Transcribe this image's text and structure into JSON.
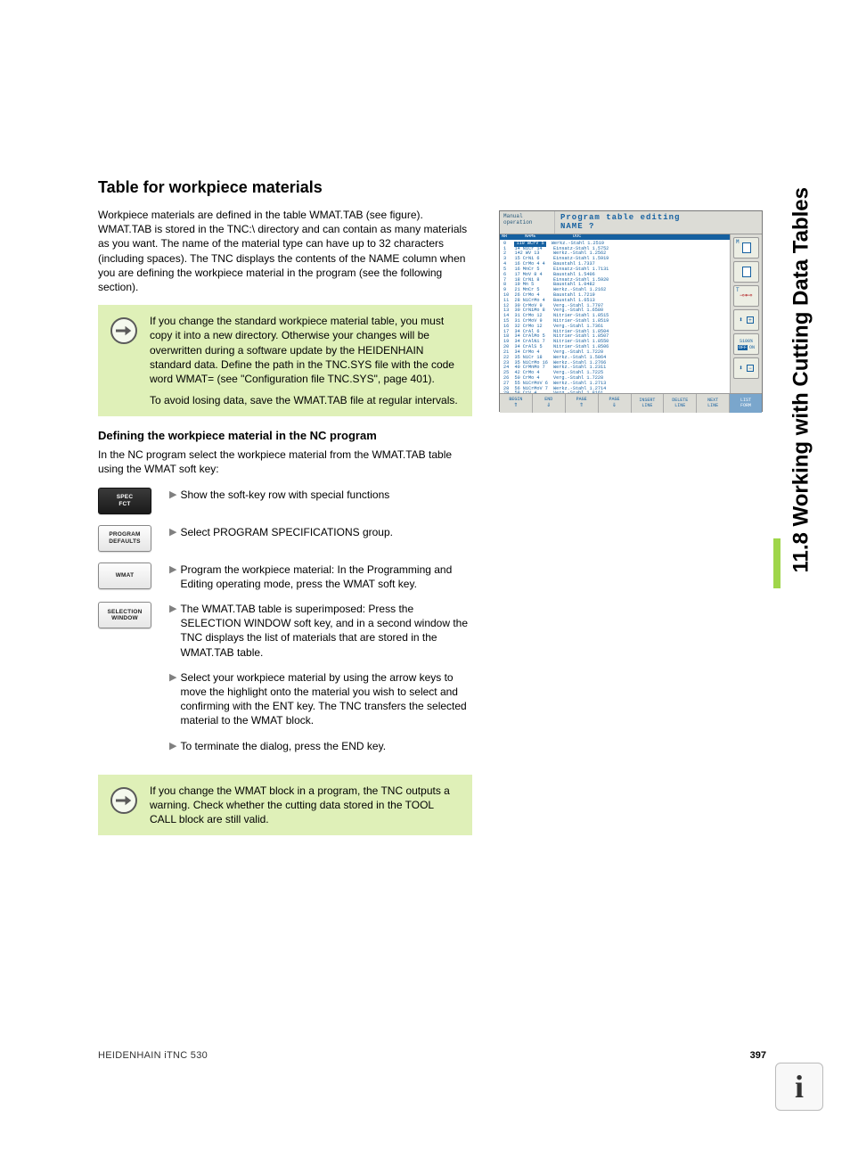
{
  "side_title": "11.8 Working with Cutting Data Tables",
  "section_title": "Table for workpiece materials",
  "intro_paragraph": "Workpiece materials are defined in the table WMAT.TAB (see figure). WMAT.TAB is stored in the TNC:\\ directory and can contain as many materials as you want. The name of the material type can have up to 32 characters (including spaces). The TNC displays the contents of the NAME column when you are defining the workpiece material in the program (see the following section).",
  "note1_p1": "If you change the standard workpiece material table, you must copy it into a new directory. Otherwise your changes will be overwritten during a software update by the HEIDENHAIN standard data. Define the path in the TNC.SYS file with the code word WMAT= (see \"Configuration file TNC.SYS\", page 401).",
  "note1_p2": "To avoid losing data, save the WMAT.TAB file at regular intervals.",
  "subheading": "Defining the workpiece material in the NC program",
  "sub_intro": "In the NC program select the workpiece material from the WMAT.TAB table using the WMAT soft key:",
  "steps": [
    {
      "key_label": "SPEC\nFCT",
      "key_dark": true,
      "text": "Show the soft-key row with special functions"
    },
    {
      "key_label": "PROGRAM\nDEFAULTS",
      "key_dark": false,
      "text": "Select PROGRAM SPECIFICATIONS group."
    },
    {
      "key_label": "WMAT",
      "key_dark": false,
      "text": "Program the workpiece material: In the Programming and Editing operating mode, press the WMAT soft key."
    },
    {
      "key_label": "SELECTION\nWINDOW",
      "key_dark": false,
      "text": "The WMAT.TAB table is superimposed: Press the SELECTION WINDOW soft key, and in a second window the TNC displays the list of materials that are stored in the WMAT.TAB table."
    },
    {
      "key_label": "",
      "key_dark": false,
      "text": "Select your workpiece material by using the arrow keys to move the highlight onto the material you wish to select and confirming with the ENT key. The TNC transfers the selected material to the WMAT block."
    },
    {
      "key_label": "",
      "key_dark": false,
      "text": "To terminate the dialog, press the END key."
    }
  ],
  "note2": "If you change the WMAT block in a program, the TNC outputs a warning. Check whether the cutting data stored in the TOOL CALL block are still valid.",
  "footer_left": "HEIDENHAIN iTNC 530",
  "footer_page": "397",
  "screenshot": {
    "header_small": "Manual\noperation",
    "header_line1": "Program table editing",
    "header_line2": "NAME ?",
    "table_file": "File: WMAT.TAB",
    "col_headers": [
      "NR",
      "NAME",
      "DOC"
    ],
    "rows": [
      [
        "0",
        "110 WCrV 5",
        "Werkz.-Stahl 1.2519"
      ],
      [
        "1",
        "14 NiCr 14",
        "Einsatz-Stahl 1.5752"
      ],
      [
        "2",
        "142 WV 13",
        "Werkz.-Stahl 1.2562"
      ],
      [
        "3",
        "15 CrNi 6",
        "Einsatz-Stahl 1.5919"
      ],
      [
        "4",
        "16 CrMo 4 4",
        "Baustahl 1.7337"
      ],
      [
        "5",
        "16 MnCr 5",
        "Einsatz-Stahl 1.7131"
      ],
      [
        "6",
        "17 MoV 8 4",
        "Baustahl 1.5406"
      ],
      [
        "7",
        "18 CrNi 8",
        "Einsatz-Stahl 1.5920"
      ],
      [
        "8",
        "19 Mn 5",
        "Baustahl 1.0482"
      ],
      [
        "9",
        "21 MnCr 5",
        "Werkz.-Stahl 1.2162"
      ],
      [
        "10",
        "26 CrMo 4",
        "Baustahl 1.7219"
      ],
      [
        "11",
        "28 NiCrMo 4",
        "Baustahl 1.6513"
      ],
      [
        "12",
        "30 CrMoV 9",
        "Verg.-Stahl 1.7707"
      ],
      [
        "13",
        "30 CrNiMo 8",
        "Verg.-Stahl 1.6580"
      ],
      [
        "14",
        "31 CrMo 12",
        "Nitrier-Stahl 1.8515"
      ],
      [
        "15",
        "31 CrMoV 9",
        "Nitrier-Stahl 1.8519"
      ],
      [
        "16",
        "32 CrMo 12",
        "Verg.-Stahl 1.7361"
      ],
      [
        "17",
        "34 CrAl 6",
        "Nitrier-Stahl 1.8504"
      ],
      [
        "18",
        "34 CrAlMo 5",
        "Nitrier-Stahl 1.8507"
      ],
      [
        "19",
        "34 CrAlNi 7",
        "Nitrier-Stahl 1.8550"
      ],
      [
        "20",
        "34 CrAlS 5",
        "Nitrier-Stahl 1.8506"
      ],
      [
        "21",
        "34 CrMo 4",
        "Verg.-Stahl 1.7220"
      ],
      [
        "22",
        "35 NiCr 18",
        "Werkz.-Stahl 1.5864"
      ],
      [
        "23",
        "35 NiCrMo 16",
        "Werkz.-Stahl 1.2766"
      ],
      [
        "24",
        "40 CrMnMo 7",
        "Werkz.-Stahl 1.2311"
      ],
      [
        "25",
        "42 CrMo 4",
        "Verg.-Stahl 1.7225"
      ],
      [
        "26",
        "50 CrMo 4",
        "Verg.-Stahl 1.7228"
      ],
      [
        "27",
        "55 NiCrMoV 6",
        "Werkz.-Stahl 1.2713"
      ],
      [
        "28",
        "56 NiCrMoV 7",
        "Werkz.-Stahl 1.2714"
      ],
      [
        "29",
        "58 CrV 4",
        "Verg.-Stahl 1.8161"
      ]
    ],
    "side_buttons": [
      "M",
      "",
      "T",
      "",
      "S100%",
      "F"
    ],
    "footer_buttons": [
      "BEGIN",
      "END",
      "PAGE",
      "PAGE",
      "INSERT\nLINE",
      "DELETE\nLINE",
      "NEXT\nLINE",
      "LIST\nFORM"
    ]
  }
}
